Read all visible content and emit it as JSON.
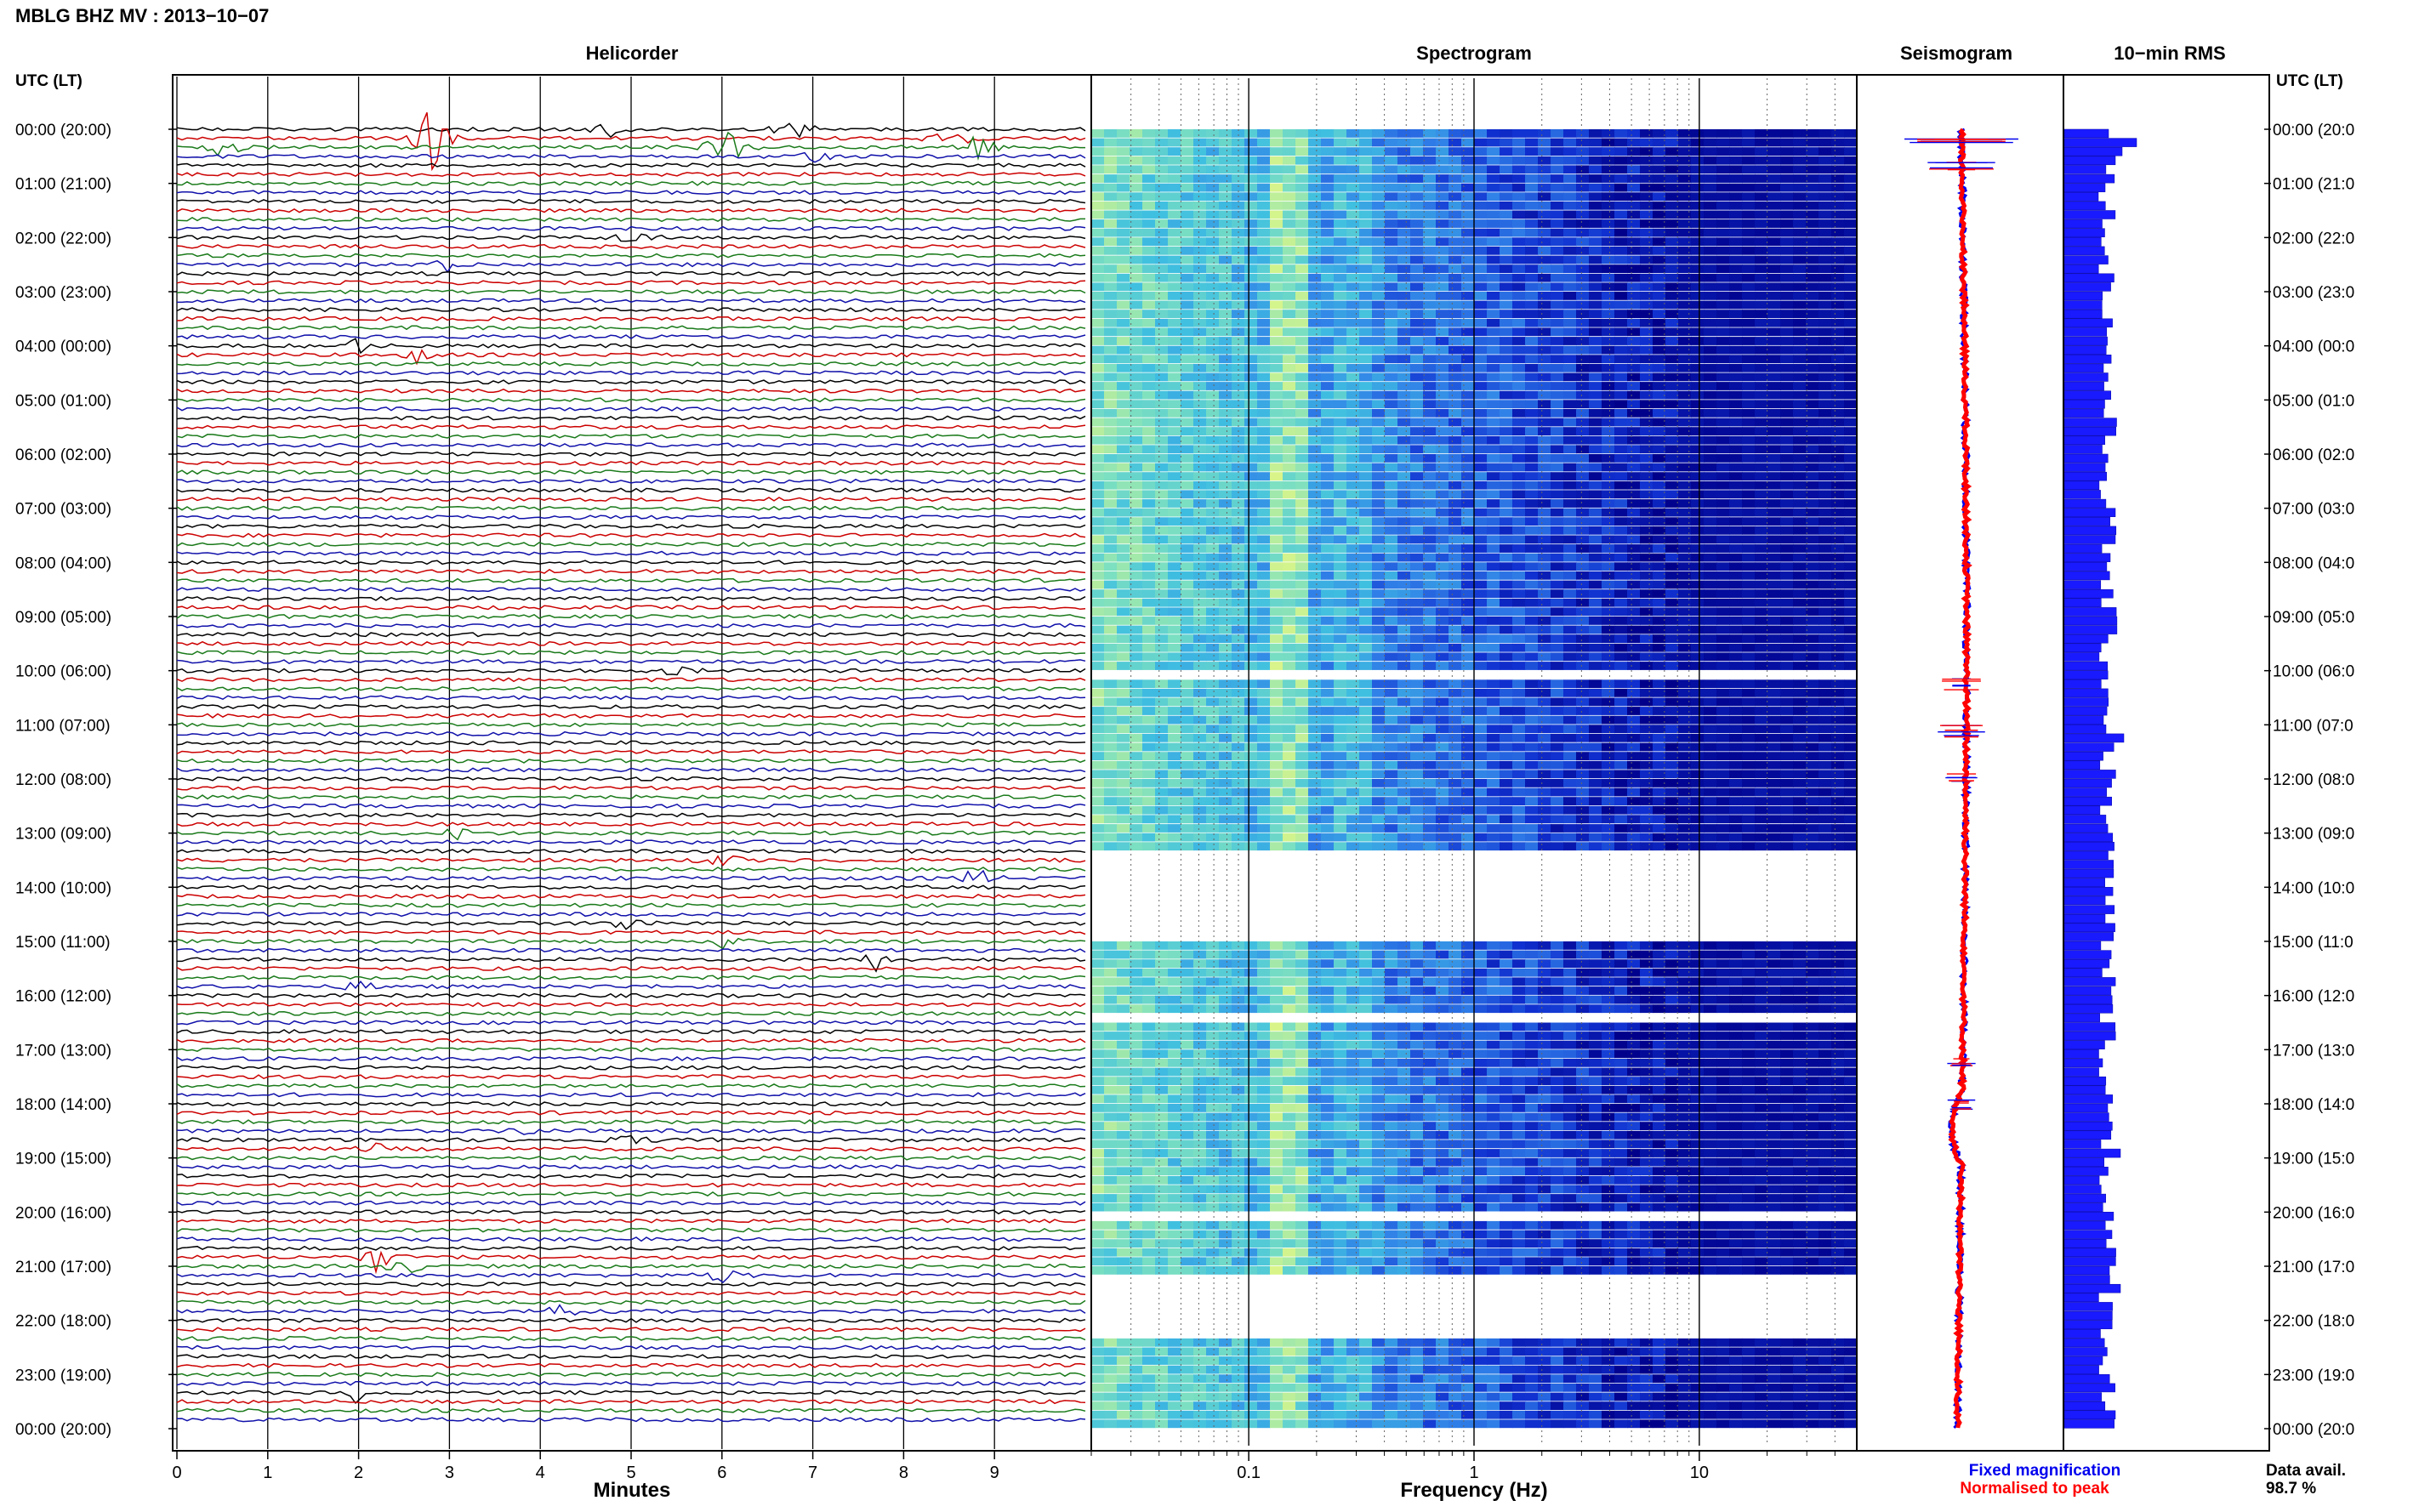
{
  "figure_title": "MBLG BHZ MV : 2013−10−07",
  "panels": {
    "helicorder": "Helicorder",
    "spectrogram": "Spectrogram",
    "seismogram": "Seismogram",
    "rms": "10−min RMS"
  },
  "time_axis_header": "UTC (LT)",
  "time_labels": [
    "00:00 (20:00)",
    "01:00 (21:00)",
    "02:00 (22:00)",
    "03:00 (23:00)",
    "04:00 (00:00)",
    "05:00 (01:00)",
    "06:00 (02:00)",
    "07:00 (03:00)",
    "08:00 (04:00)",
    "09:00 (05:00)",
    "10:00 (06:00)",
    "11:00 (07:00)",
    "12:00 (08:00)",
    "13:00 (09:00)",
    "14:00 (10:00)",
    "15:00 (11:00)",
    "16:00 (12:00)",
    "17:00 (13:00)",
    "18:00 (14:00)",
    "19:00 (15:00)",
    "20:00 (16:00)",
    "21:00 (17:00)",
    "22:00 (18:00)",
    "23:00 (19:00)",
    "00:00 (20:00)"
  ],
  "time_labels_right": [
    "00:00 (20:0",
    "01:00 (21:0",
    "02:00 (22:0",
    "03:00 (23:0",
    "04:00 (00:0",
    "05:00 (01:0",
    "06:00 (02:0",
    "07:00 (03:0",
    "08:00 (04:0",
    "09:00 (05:0",
    "10:00 (06:0",
    "11:00 (07:0",
    "12:00 (08:0",
    "13:00 (09:0",
    "14:00 (10:0",
    "15:00 (11:0",
    "16:00 (12:0",
    "17:00 (13:0",
    "18:00 (14:0",
    "19:00 (15:0",
    "20:00 (16:0",
    "21:00 (17:0",
    "22:00 (18:0",
    "23:00 (19:0",
    "00:00 (20:0"
  ],
  "minutes_axis": {
    "label": "Minutes",
    "ticks": [
      "0",
      "1",
      "2",
      "3",
      "4",
      "5",
      "6",
      "7",
      "8",
      "9"
    ]
  },
  "frequency_axis": {
    "label": "Frequency (Hz)",
    "ticks": [
      "0.1",
      "1",
      "10"
    ]
  },
  "legend": {
    "fixed": "Fixed magnification",
    "normalised": "Normalised to peak",
    "fixed_color": "#0000ee",
    "normalised_color": "#ff0000"
  },
  "data_availability": {
    "label": "Data avail.",
    "value": "98.7 %"
  },
  "colors": {
    "trace_cycle": [
      "#000000",
      "#cc0000",
      "#1a7a1a",
      "#1010aa"
    ],
    "rms_bar": "#1a1aff",
    "spectrogram_low": "#00008b",
    "spectrogram_high": "#ffff66"
  },
  "chart_data": [
    {
      "type": "line",
      "panel": "helicorder",
      "x_unit": "minutes",
      "xlim": [
        0,
        10
      ],
      "lines_per_hour": 6,
      "hours": 24,
      "title": "Helicorder",
      "xlabel": "Minutes"
    },
    {
      "type": "heatmap",
      "panel": "spectrogram",
      "x_scale": "log",
      "xlim": [
        0.02,
        50
      ],
      "title": "Spectrogram",
      "xlabel": "Frequency (Hz)"
    },
    {
      "type": "line",
      "panel": "seismogram",
      "title": "Seismogram",
      "series": [
        {
          "name": "Fixed magnification"
        },
        {
          "name": "Normalised to peak"
        }
      ]
    },
    {
      "type": "bar",
      "panel": "rms",
      "title": "10−min RMS",
      "orientation": "horizontal",
      "bins": 144,
      "bin_minutes": 10
    }
  ]
}
